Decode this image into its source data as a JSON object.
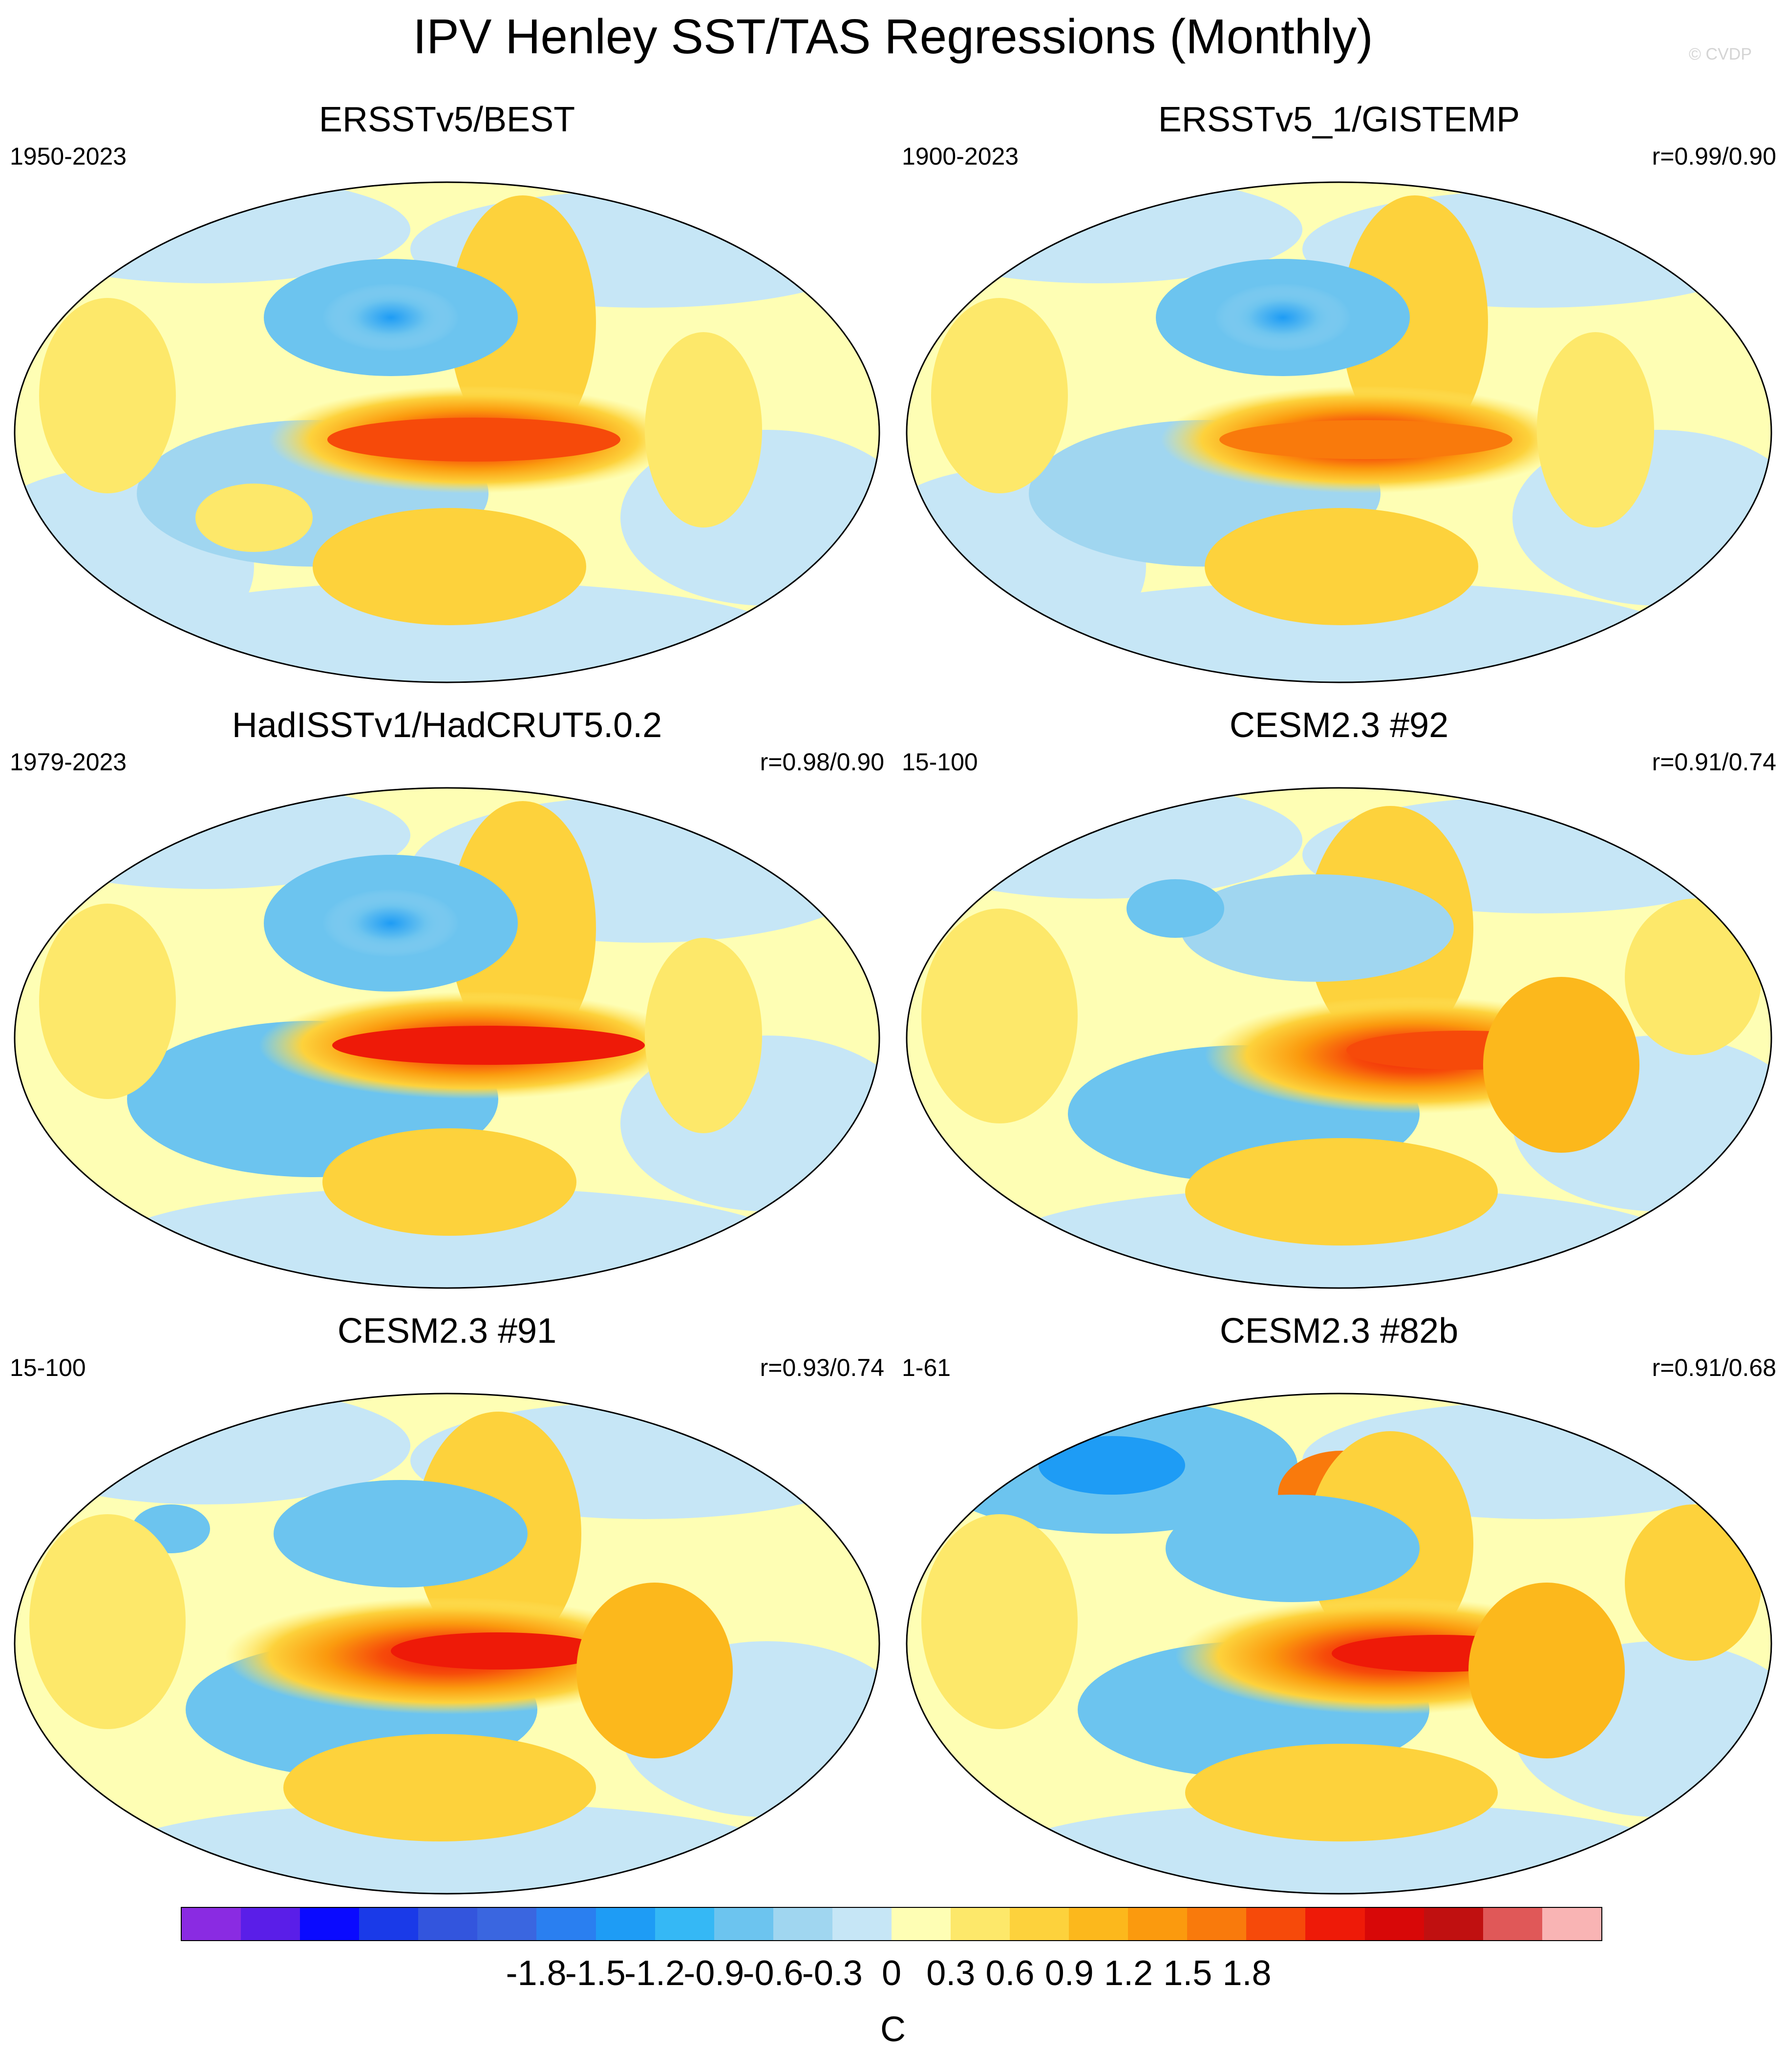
{
  "title": "IPV Henley SST/TAS Regressions (Monthly)",
  "watermark": "© CVDP",
  "panels": [
    {
      "title": "ERSSTv5/BEST",
      "left_label": "1950-2023",
      "right_label": ""
    },
    {
      "title": "ERSSTv5_1/GISTEMP",
      "left_label": "1900-2023",
      "right_label": "r=0.99/0.90"
    },
    {
      "title": "HadISSTv1/HadCRUT5.0.2",
      "left_label": "1979-2023",
      "right_label": "r=0.98/0.90"
    },
    {
      "title": "CESM2.3 #92",
      "left_label": "15-100",
      "right_label": "r=0.91/0.74"
    },
    {
      "title": "CESM2.3 #91",
      "left_label": "15-100",
      "right_label": "r=0.93/0.74"
    },
    {
      "title": "CESM2.3 #82b",
      "left_label": "1-61",
      "right_label": "r=0.91/0.68"
    }
  ],
  "colorbar": {
    "units": "C",
    "labels": [
      "-1.8",
      "-1.5",
      "-1.2",
      "-0.9",
      "-0.6",
      "-0.3",
      "0",
      "0.3",
      "0.6",
      "0.9",
      "1.2",
      "1.5",
      "1.8"
    ],
    "colors": [
      "#8a2be2",
      "#5a1ee8",
      "#0a0aff",
      "#1a3ae8",
      "#3355dd",
      "#3a66e0",
      "#2a7ff0",
      "#1e9cf5",
      "#35b8f5",
      "#6cc4ef",
      "#a0d6f0",
      "#c6e6f6",
      "#fefeb4",
      "#fde86a",
      "#fdd23c",
      "#fcb81c",
      "#fb9a0e",
      "#f97a0c",
      "#f64a0a",
      "#ee1a08",
      "#d80808",
      "#c01010",
      "#e05858",
      "#f9b4b4"
    ]
  }
}
